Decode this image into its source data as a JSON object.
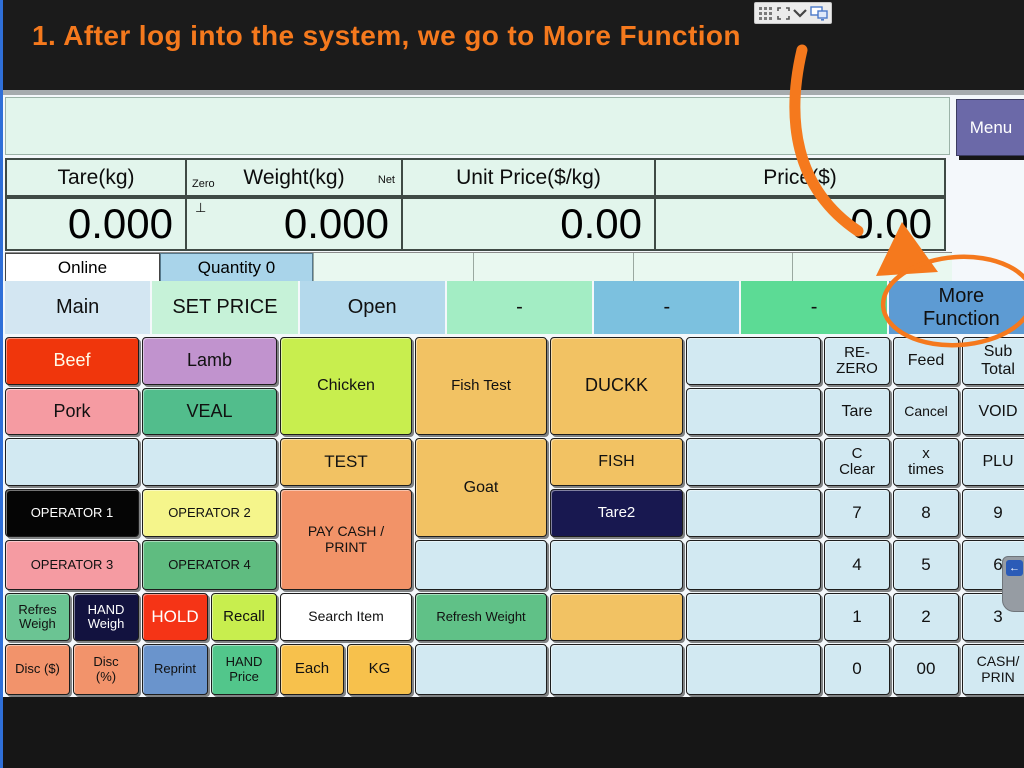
{
  "annotation": {
    "step_text": "1. After log into the system, we go to More Function",
    "accent_color": "#F5791D"
  },
  "screen_toolbar": {
    "icons": [
      "grid-handle-icon",
      "expand-icon",
      "chevron-down-icon",
      "display-share-icon"
    ]
  },
  "side_handle": {
    "icon": "back-arrow-icon",
    "glyph": "←"
  },
  "menu_button": {
    "label": "Menu"
  },
  "display": {
    "columns": [
      {
        "label": "Tare(kg)",
        "value": "0.000"
      },
      {
        "label": "Weight(kg)",
        "value": "0.000",
        "sub_left": "Zero",
        "sub_right": "Net",
        "zero_mark": "⊥"
      },
      {
        "label": "Unit Price($/kg)",
        "value": "0.00"
      },
      {
        "label": "Price($)",
        "value": "0.00"
      }
    ]
  },
  "status": {
    "online_label": "Online",
    "quantity_label": "Quantity 0"
  },
  "tabs": [
    {
      "name": "tab-main",
      "label": "Main",
      "bg": "#d3e6f2"
    },
    {
      "name": "tab-set-price",
      "label": "SET PRICE",
      "bg": "#c6f2d8"
    },
    {
      "name": "tab-open",
      "label": "Open",
      "bg": "#b4d9ec"
    },
    {
      "name": "tab-blank-1",
      "label": "-",
      "bg": "#a3edc4"
    },
    {
      "name": "tab-blank-2",
      "label": "-",
      "bg": "#7cc1df"
    },
    {
      "name": "tab-blank-3",
      "label": "-",
      "bg": "#5cdb95"
    },
    {
      "name": "tab-more-function",
      "label": "More\nFunction",
      "bg": "#5d9bd3"
    }
  ],
  "grid": {
    "buttons": [
      {
        "name": "beef-button",
        "label": "Beef",
        "r": 1,
        "c": 1,
        "cs": 2,
        "bg": "#f0360c",
        "fg": "#fffbe8",
        "fs": 18
      },
      {
        "name": "lamb-button",
        "label": "Lamb",
        "r": 1,
        "c": 3,
        "cs": 2,
        "bg": "#c193ce",
        "fs": 18
      },
      {
        "name": "chicken-button",
        "label": "Chicken",
        "r": 1,
        "c": 5,
        "cs": 2,
        "rs": 2,
        "bg": "#c8ee4e",
        "fs": 16
      },
      {
        "name": "fish-test-button",
        "label": "Fish Test",
        "r": 1,
        "c": 7,
        "rs": 2,
        "bg": "#f2c263",
        "fs": 15
      },
      {
        "name": "duckk-button",
        "label": "DUCKK",
        "r": 1,
        "c": 8,
        "rs": 2,
        "bg": "#f2c263",
        "fs": 18
      },
      {
        "name": "preset-blank",
        "label": "",
        "r": 1,
        "c": 9,
        "bg": "#d2e9f2"
      },
      {
        "name": "re-zero-button",
        "label": "RE-\nZERO",
        "r": 1,
        "c": 10,
        "bg": "#d2e9f2",
        "fs": 15
      },
      {
        "name": "feed-button",
        "label": "Feed",
        "r": 1,
        "c": 11,
        "bg": "#d2e9f2",
        "fs": 16
      },
      {
        "name": "sub-total-button",
        "label": "Sub\nTotal",
        "r": 1,
        "c": 12,
        "bg": "#d2e9f2",
        "fs": 16
      },
      {
        "name": "pork-button",
        "label": "Pork",
        "r": 2,
        "c": 1,
        "cs": 2,
        "bg": "#f59ba2",
        "fs": 18
      },
      {
        "name": "veal-button",
        "label": "VEAL",
        "r": 2,
        "c": 3,
        "cs": 2,
        "bg": "#52bd8c",
        "fs": 18
      },
      {
        "name": "preset-blank",
        "label": "",
        "r": 2,
        "c": 9,
        "bg": "#d2e9f2"
      },
      {
        "name": "tare-button",
        "label": "Tare",
        "r": 2,
        "c": 10,
        "bg": "#d2e9f2",
        "fs": 16
      },
      {
        "name": "cancel-button",
        "label": "Cancel",
        "r": 2,
        "c": 11,
        "bg": "#d2e9f2",
        "fs": 14
      },
      {
        "name": "void-button",
        "label": "VOID",
        "r": 2,
        "c": 12,
        "bg": "#d2e9f2",
        "fs": 16
      },
      {
        "name": "preset-blank",
        "label": "",
        "r": 3,
        "c": 1,
        "cs": 2,
        "bg": "#d2e9f2"
      },
      {
        "name": "preset-blank",
        "label": "",
        "r": 3,
        "c": 3,
        "cs": 2,
        "bg": "#d2e9f2"
      },
      {
        "name": "test-button",
        "label": "TEST",
        "r": 3,
        "c": 5,
        "cs": 2,
        "bg": "#f2c263",
        "fs": 17
      },
      {
        "name": "goat-button",
        "label": "Goat",
        "r": 3,
        "c": 7,
        "rs": 2,
        "bg": "#f2c263",
        "fs": 16
      },
      {
        "name": "fish-button",
        "label": "FISH",
        "r": 3,
        "c": 8,
        "bg": "#f2c263",
        "fs": 16
      },
      {
        "name": "preset-blank",
        "label": "",
        "r": 3,
        "c": 9,
        "bg": "#d2e9f2"
      },
      {
        "name": "c-clear-button",
        "label": "C\nClear",
        "r": 3,
        "c": 10,
        "bg": "#d2e9f2",
        "fs": 15
      },
      {
        "name": "x-times-button",
        "label": "x\ntimes",
        "r": 3,
        "c": 11,
        "bg": "#d2e9f2",
        "fs": 15
      },
      {
        "name": "plu-button",
        "label": "PLU",
        "r": 3,
        "c": 12,
        "bg": "#d2e9f2",
        "fs": 16
      },
      {
        "name": "operator-1-button",
        "label": "OPERATOR 1",
        "r": 4,
        "c": 1,
        "cs": 2,
        "bg": "#050505",
        "fg": "#ffffff",
        "fs": 13
      },
      {
        "name": "operator-2-button",
        "label": "OPERATOR 2",
        "r": 4,
        "c": 3,
        "cs": 2,
        "bg": "#f5f58b",
        "fs": 13
      },
      {
        "name": "pay-cash-print-button",
        "label": "PAY CASH /\nPRINT",
        "r": 4,
        "c": 5,
        "cs": 2,
        "rs": 2,
        "bg": "#f29368",
        "fs": 14
      },
      {
        "name": "tare2-button",
        "label": "Tare2",
        "r": 4,
        "c": 8,
        "bg": "#181850",
        "fg": "#ffffff",
        "fs": 15
      },
      {
        "name": "preset-blank",
        "label": "",
        "r": 4,
        "c": 9,
        "bg": "#d2e9f2"
      },
      {
        "name": "key-7-button",
        "label": "7",
        "r": 4,
        "c": 10,
        "bg": "#d2e9f2",
        "fs": 17
      },
      {
        "name": "key-8-button",
        "label": "8",
        "r": 4,
        "c": 11,
        "bg": "#d2e9f2",
        "fs": 17
      },
      {
        "name": "key-9-button",
        "label": "9",
        "r": 4,
        "c": 12,
        "bg": "#d2e9f2",
        "fs": 17
      },
      {
        "name": "operator-3-button",
        "label": "OPERATOR 3",
        "r": 5,
        "c": 1,
        "cs": 2,
        "bg": "#f59ba2",
        "fs": 13
      },
      {
        "name": "operator-4-button",
        "label": "OPERATOR 4",
        "r": 5,
        "c": 3,
        "cs": 2,
        "bg": "#5fbc80",
        "fs": 13
      },
      {
        "name": "preset-blank",
        "label": "",
        "r": 5,
        "c": 7,
        "bg": "#d2e9f2"
      },
      {
        "name": "preset-blank",
        "label": "",
        "r": 5,
        "c": 8,
        "bg": "#d2e9f2"
      },
      {
        "name": "preset-blank",
        "label": "",
        "r": 5,
        "c": 9,
        "bg": "#d2e9f2"
      },
      {
        "name": "key-4-button",
        "label": "4",
        "r": 5,
        "c": 10,
        "bg": "#d2e9f2",
        "fs": 17
      },
      {
        "name": "key-5-button",
        "label": "5",
        "r": 5,
        "c": 11,
        "bg": "#d2e9f2",
        "fs": 17
      },
      {
        "name": "key-6-button",
        "label": "6",
        "r": 5,
        "c": 12,
        "bg": "#d2e9f2",
        "fs": 17
      },
      {
        "name": "refresh-weigh-button",
        "label": "Refres\nWeigh",
        "r": 6,
        "c": 1,
        "bg": "#6bc493",
        "fs": 13
      },
      {
        "name": "hand-weigh-button",
        "label": "HAND\nWeigh",
        "r": 6,
        "c": 2,
        "bg": "#12123f",
        "fg": "#ffffff",
        "fs": 13
      },
      {
        "name": "hold-button",
        "label": "HOLD",
        "r": 6,
        "c": 3,
        "bg": "#f53416",
        "fg": "#ffffff",
        "fs": 17
      },
      {
        "name": "recall-button",
        "label": "Recall",
        "r": 6,
        "c": 4,
        "bg": "#c8ee4e",
        "fs": 15
      },
      {
        "name": "search-item-button",
        "label": "Search Item",
        "r": 6,
        "c": 5,
        "cs": 2,
        "bg": "#ffffff",
        "fs": 14
      },
      {
        "name": "refresh-weight-button",
        "label": "Refresh Weight",
        "r": 6,
        "c": 7,
        "bg": "#60c187",
        "fs": 13
      },
      {
        "name": "preset-blank-orange",
        "label": "",
        "r": 6,
        "c": 8,
        "bg": "#f2c263"
      },
      {
        "name": "preset-blank",
        "label": "",
        "r": 6,
        "c": 9,
        "bg": "#d2e9f2"
      },
      {
        "name": "key-1-button",
        "label": "1",
        "r": 6,
        "c": 10,
        "bg": "#d2e9f2",
        "fs": 17
      },
      {
        "name": "key-2-button",
        "label": "2",
        "r": 6,
        "c": 11,
        "bg": "#d2e9f2",
        "fs": 17
      },
      {
        "name": "key-3-button",
        "label": "3",
        "r": 6,
        "c": 12,
        "bg": "#d2e9f2",
        "fs": 17
      },
      {
        "name": "disc-dollar-button",
        "label": "Disc ($)",
        "r": 7,
        "c": 1,
        "bg": "#f2936b",
        "fs": 13
      },
      {
        "name": "disc-percent-button",
        "label": "Disc\n(%)",
        "r": 7,
        "c": 2,
        "bg": "#f2936b",
        "fs": 13
      },
      {
        "name": "reprint-button",
        "label": "Reprint",
        "r": 7,
        "c": 3,
        "bg": "#6a94cc",
        "fs": 13
      },
      {
        "name": "hand-price-button",
        "label": "HAND\nPrice",
        "r": 7,
        "c": 4,
        "bg": "#52c68b",
        "fs": 13
      },
      {
        "name": "each-button",
        "label": "Each",
        "r": 7,
        "c": 5,
        "bg": "#f7c14c",
        "fs": 15
      },
      {
        "name": "kg-button",
        "label": "KG",
        "r": 7,
        "c": 6,
        "bg": "#f7c14c",
        "fs": 15
      },
      {
        "name": "preset-blank",
        "label": "",
        "r": 7,
        "c": 7,
        "bg": "#d2e9f2"
      },
      {
        "name": "preset-blank",
        "label": "",
        "r": 7,
        "c": 8,
        "bg": "#d2e9f2"
      },
      {
        "name": "preset-blank",
        "label": "",
        "r": 7,
        "c": 9,
        "bg": "#d2e9f2"
      },
      {
        "name": "key-0-button",
        "label": "0",
        "r": 7,
        "c": 10,
        "bg": "#d2e9f2",
        "fs": 17
      },
      {
        "name": "key-00-button",
        "label": "00",
        "r": 7,
        "c": 11,
        "bg": "#d2e9f2",
        "fs": 17
      },
      {
        "name": "cash-print-button",
        "label": "CASH/\nPRIN",
        "r": 7,
        "c": 12,
        "bg": "#d2e9f2",
        "fs": 14
      }
    ]
  }
}
